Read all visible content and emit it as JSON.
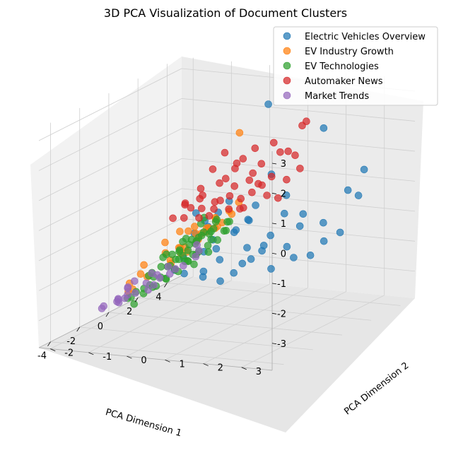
{
  "chart_data": {
    "type": "scatter",
    "projection": "3d",
    "title": "3D PCA Visualization of Document Clusters",
    "xlabel": "PCA Dimension 1",
    "ylabel": "PCA Dimension 2",
    "zlabel": "",
    "xlim": [
      -4.8,
      5.0
    ],
    "ylim": [
      -2.3,
      3.8
    ],
    "zlim": [
      -3.9,
      3.4
    ],
    "xticks": [
      "-4",
      "-2",
      "0",
      "2",
      "4"
    ],
    "yticks": [
      "-2",
      "-1",
      "0",
      "1",
      "2",
      "3"
    ],
    "zticks": [
      "-3",
      "-2",
      "-1",
      "0",
      "1",
      "2",
      "3"
    ],
    "grid": true,
    "legend": "top-right",
    "series": [
      {
        "name": "Electric Vehicles Overview",
        "color": "#1f77b4",
        "points": [
          [
            3.2,
            2.1,
            2.0
          ],
          [
            3.6,
            0.5,
            2.5
          ],
          [
            4.4,
            2.7,
            0.4
          ],
          [
            4.6,
            2.2,
            -0.4
          ],
          [
            4.8,
            2.4,
            -0.6
          ],
          [
            2.5,
            1.0,
            0.5
          ],
          [
            2.2,
            0.7,
            -0.5
          ],
          [
            3.0,
            1.2,
            -0.3
          ],
          [
            2.8,
            0.3,
            -1.2
          ],
          [
            3.1,
            1.6,
            -0.9
          ],
          [
            2.0,
            -0.2,
            -0.8
          ],
          [
            2.3,
            0.1,
            -1.5
          ],
          [
            2.7,
            0.9,
            -1.6
          ],
          [
            3.4,
            1.4,
            -1.4
          ],
          [
            3.7,
            1.9,
            -1.3
          ],
          [
            1.6,
            -0.4,
            -1.0
          ],
          [
            1.9,
            -0.3,
            -1.7
          ],
          [
            2.4,
            0.4,
            -2.0
          ],
          [
            2.9,
            0.6,
            -2.2
          ],
          [
            3.3,
            1.1,
            -2.1
          ],
          [
            1.4,
            -0.6,
            -1.4
          ],
          [
            1.8,
            -0.5,
            -2.1
          ],
          [
            2.1,
            -0.2,
            -2.4
          ],
          [
            2.6,
            0.2,
            -2.6
          ],
          [
            3.0,
            0.8,
            -2.8
          ],
          [
            1.2,
            -0.8,
            -2.2
          ],
          [
            1.5,
            -0.9,
            -2.8
          ],
          [
            2.0,
            -0.6,
            -3.0
          ],
          [
            2.4,
            -0.3,
            -3.2
          ],
          [
            3.5,
            1.2,
            -2.5
          ],
          [
            1.0,
            -0.4,
            -0.6
          ],
          [
            1.3,
            -0.2,
            -1.1
          ],
          [
            2.6,
            1.3,
            -0.8
          ],
          [
            3.8,
            2.3,
            -1.6
          ],
          [
            4.0,
            1.8,
            -2.0
          ],
          [
            1.7,
            0.2,
            -0.3
          ],
          [
            2.2,
            0.5,
            -1.0
          ],
          [
            3.2,
            0.2,
            -2.6
          ],
          [
            1.1,
            -1.0,
            -2.6
          ],
          [
            2.8,
            -0.1,
            -3.0
          ],
          [
            1.9,
            0.3,
            -1.3
          ],
          [
            2.5,
            0.8,
            -1.9
          ],
          [
            3.6,
            1.6,
            -2.4
          ],
          [
            1.6,
            -0.1,
            -1.9
          ],
          [
            2.3,
            -0.7,
            -2.9
          ]
        ]
      },
      {
        "name": "EV Industry Growth",
        "color": "#ff7f0e",
        "points": [
          [
            -1.0,
            1.5,
            2.8
          ],
          [
            -3.3,
            1.2,
            0.2
          ],
          [
            -3.5,
            0.9,
            -0.5
          ],
          [
            -3.2,
            0.4,
            -0.8
          ],
          [
            -2.9,
            1.6,
            0.4
          ],
          [
            -2.6,
            1.3,
            0.0
          ],
          [
            -2.3,
            1.0,
            -0.3
          ],
          [
            -3.0,
            0.7,
            -0.1
          ],
          [
            -2.7,
            0.2,
            -0.6
          ],
          [
            -2.4,
            0.5,
            -1.0
          ],
          [
            -3.4,
            0.0,
            -1.6
          ],
          [
            -3.1,
            -0.2,
            -1.3
          ],
          [
            -2.8,
            -0.4,
            -1.7
          ],
          [
            -2.5,
            1.8,
            0.6
          ],
          [
            -2.2,
            1.5,
            0.1
          ],
          [
            -1.9,
            1.2,
            -0.2
          ],
          [
            -2.0,
            0.8,
            -0.6
          ],
          [
            -2.6,
            0.3,
            -1.2
          ],
          [
            -3.6,
            -0.3,
            -2.0
          ],
          [
            -3.3,
            -0.5,
            -1.9
          ],
          [
            -2.9,
            1.1,
            -0.4
          ],
          [
            -2.5,
            0.7,
            -0.9
          ],
          [
            -2.1,
            1.9,
            0.8
          ],
          [
            -1.8,
            1.6,
            0.3
          ],
          [
            -3.0,
            1.4,
            0.1
          ],
          [
            -2.3,
            0.2,
            -1.4
          ],
          [
            -1.7,
            0.9,
            -0.4
          ],
          [
            -2.7,
            1.0,
            -0.2
          ],
          [
            -3.2,
            1.0,
            0.0
          ],
          [
            -2.0,
            1.3,
            -0.1
          ],
          [
            -2.8,
            0.6,
            -0.7
          ],
          [
            -2.4,
            1.4,
            0.3
          ],
          [
            -0.5,
            -1.6,
            -3.0
          ],
          [
            -3.7,
            1.1,
            -0.4
          ]
        ]
      },
      {
        "name": "EV Technologies",
        "color": "#2ca02c",
        "points": [
          [
            -0.8,
            0.5,
            -0.2
          ],
          [
            -0.5,
            0.3,
            -0.5
          ],
          [
            -0.2,
            0.6,
            -0.4
          ],
          [
            0.1,
            0.4,
            -0.8
          ],
          [
            0.4,
            0.7,
            -0.6
          ],
          [
            -1.0,
            0.1,
            -0.9
          ],
          [
            -0.7,
            -0.1,
            -1.1
          ],
          [
            -0.4,
            0.2,
            -1.0
          ],
          [
            -0.1,
            0.0,
            -1.3
          ],
          [
            0.2,
            0.3,
            -1.2
          ],
          [
            0.5,
            0.1,
            -1.5
          ],
          [
            -1.3,
            -0.3,
            -1.4
          ],
          [
            -1.0,
            -0.5,
            -1.6
          ],
          [
            -0.7,
            -0.2,
            -1.7
          ],
          [
            -0.4,
            -0.4,
            -1.8
          ],
          [
            -0.1,
            -0.2,
            -1.9
          ],
          [
            0.2,
            -0.3,
            -2.0
          ],
          [
            0.5,
            -0.5,
            -2.1
          ],
          [
            -1.5,
            -0.6,
            -2.0
          ],
          [
            -1.2,
            -0.8,
            -2.2
          ],
          [
            -0.9,
            -0.6,
            -2.3
          ],
          [
            -0.6,
            -0.9,
            -2.4
          ],
          [
            -0.3,
            -0.7,
            -2.5
          ],
          [
            0.0,
            -0.8,
            -2.6
          ],
          [
            0.3,
            -0.6,
            -2.4
          ],
          [
            -1.7,
            0.2,
            -1.1
          ],
          [
            -1.4,
            0.4,
            -0.8
          ],
          [
            -1.1,
            0.6,
            -0.6
          ],
          [
            -0.8,
            0.8,
            -0.3
          ],
          [
            0.0,
            0.8,
            -0.5
          ],
          [
            0.7,
            0.5,
            -1.0
          ],
          [
            0.9,
            0.2,
            -1.4
          ],
          [
            -1.8,
            -0.9,
            -2.6
          ],
          [
            -1.6,
            -1.2,
            -2.9
          ],
          [
            -2.6,
            -0.4,
            -2.4
          ],
          [
            -0.6,
            0.0,
            -1.4
          ],
          [
            -0.3,
            0.1,
            -1.6
          ],
          [
            0.0,
            -0.1,
            -1.7
          ],
          [
            -0.9,
            -0.3,
            -1.5
          ],
          [
            -1.2,
            0.0,
            -1.3
          ],
          [
            -0.5,
            -0.5,
            -2.0
          ],
          [
            -0.2,
            -0.5,
            -2.2
          ],
          [
            0.1,
            -0.4,
            -1.8
          ],
          [
            -1.4,
            -0.4,
            -1.8
          ],
          [
            -0.8,
            0.3,
            -1.0
          ],
          [
            0.4,
            -0.1,
            -1.7
          ],
          [
            -1.0,
            -1.0,
            -2.7
          ],
          [
            -0.4,
            -1.0,
            -2.8
          ],
          [
            0.6,
            -0.3,
            -2.2
          ],
          [
            -2.0,
            0.0,
            -1.6
          ],
          [
            -1.9,
            -0.5,
            -2.3
          ],
          [
            -0.2,
            0.4,
            -0.9
          ],
          [
            0.3,
            0.6,
            -0.9
          ],
          [
            -0.6,
            0.6,
            -0.7
          ],
          [
            -1.5,
            0.7,
            -0.6
          ],
          [
            0.8,
            0.0,
            -1.8
          ],
          [
            -2.2,
            -0.8,
            -2.9
          ],
          [
            -1.1,
            -1.3,
            -3.0
          ],
          [
            0.1,
            -1.1,
            -2.9
          ],
          [
            -1.3,
            0.3,
            -1.0
          ]
        ]
      },
      {
        "name": "Automaker News",
        "color": "#d62728",
        "points": [
          [
            0.7,
            2.6,
            2.9
          ],
          [
            1.2,
            2.3,
            2.6
          ],
          [
            -0.7,
            1.0,
            2.0
          ],
          [
            -0.2,
            1.6,
            2.1
          ],
          [
            0.3,
            1.9,
            2.2
          ],
          [
            -1.0,
            0.8,
            1.5
          ],
          [
            -0.4,
            1.2,
            1.6
          ],
          [
            0.5,
            1.5,
            1.4
          ],
          [
            1.0,
            1.8,
            1.7
          ],
          [
            1.5,
            2.0,
            1.5
          ],
          [
            -1.3,
            0.6,
            0.9
          ],
          [
            -0.8,
            0.9,
            1.0
          ],
          [
            -0.3,
            1.1,
            0.8
          ],
          [
            0.2,
            1.3,
            0.9
          ],
          [
            0.7,
            1.2,
            1.0
          ],
          [
            1.2,
            1.5,
            0.8
          ],
          [
            1.7,
            1.7,
            0.6
          ],
          [
            -1.6,
            0.3,
            0.4
          ],
          [
            -1.1,
            0.5,
            0.5
          ],
          [
            -0.6,
            0.7,
            0.3
          ],
          [
            -0.1,
            0.9,
            0.4
          ],
          [
            0.4,
            1.0,
            0.2
          ],
          [
            0.9,
            1.1,
            0.3
          ],
          [
            1.4,
            1.3,
            0.1
          ],
          [
            -1.9,
            0.1,
            0.0
          ],
          [
            -1.4,
            0.2,
            -0.1
          ],
          [
            -0.9,
            0.4,
            -0.2
          ],
          [
            -0.4,
            0.6,
            0.0
          ],
          [
            0.1,
            0.8,
            -0.1
          ],
          [
            0.6,
            0.9,
            -0.2
          ],
          [
            1.1,
            0.8,
            -0.3
          ],
          [
            -2.1,
            0.5,
            0.6
          ],
          [
            -1.7,
            0.8,
            0.8
          ],
          [
            1.9,
            1.4,
            -0.1
          ],
          [
            -0.5,
            1.4,
            1.8
          ],
          [
            0.0,
            1.0,
            1.3
          ],
          [
            -1.2,
            0.3,
            0.2
          ],
          [
            0.8,
            1.4,
            0.6
          ],
          [
            -0.2,
            0.4,
            -0.3
          ],
          [
            2.1,
            1.9,
            0.9
          ],
          [
            -0.9,
            1.1,
            1.2
          ],
          [
            0.3,
            0.5,
            0.1
          ],
          [
            -1.5,
            0.7,
            0.3
          ],
          [
            1.6,
            1.0,
            0.4
          ],
          [
            0.5,
            2.2,
            1.9
          ]
        ]
      },
      {
        "name": "Market Trends",
        "color": "#9467bd",
        "points": [
          [
            -0.8,
            -1.5,
            -2.8
          ],
          [
            0.2,
            -1.2,
            -2.9
          ],
          [
            0.6,
            -1.5,
            -3.2
          ],
          [
            0.9,
            -0.9,
            -2.5
          ],
          [
            1.3,
            -1.2,
            -2.8
          ],
          [
            -1.2,
            -1.6,
            -3.1
          ],
          [
            -0.4,
            -1.9,
            -3.3
          ],
          [
            0.0,
            -1.8,
            -3.0
          ],
          [
            0.5,
            -2.0,
            -3.4
          ],
          [
            1.0,
            -1.7,
            -3.1
          ],
          [
            1.5,
            -0.6,
            -2.2
          ],
          [
            1.2,
            -0.4,
            -1.9
          ],
          [
            0.8,
            -0.3,
            -1.6
          ],
          [
            -1.6,
            -1.0,
            -2.7
          ],
          [
            -0.2,
            -1.1,
            -2.4
          ],
          [
            0.4,
            -0.9,
            -2.3
          ],
          [
            1.7,
            -1.0,
            -2.6
          ],
          [
            -1.0,
            -2.1,
            -3.5
          ],
          [
            0.3,
            -2.2,
            -3.6
          ],
          [
            1.1,
            -2.3,
            -3.7
          ],
          [
            -2.2,
            -1.2,
            -2.9
          ],
          [
            -0.6,
            -1.4,
            -2.6
          ],
          [
            0.7,
            -1.3,
            -2.7
          ],
          [
            1.4,
            -1.5,
            -3.0
          ],
          [
            -1.4,
            -1.9,
            -3.3
          ]
        ]
      }
    ]
  }
}
